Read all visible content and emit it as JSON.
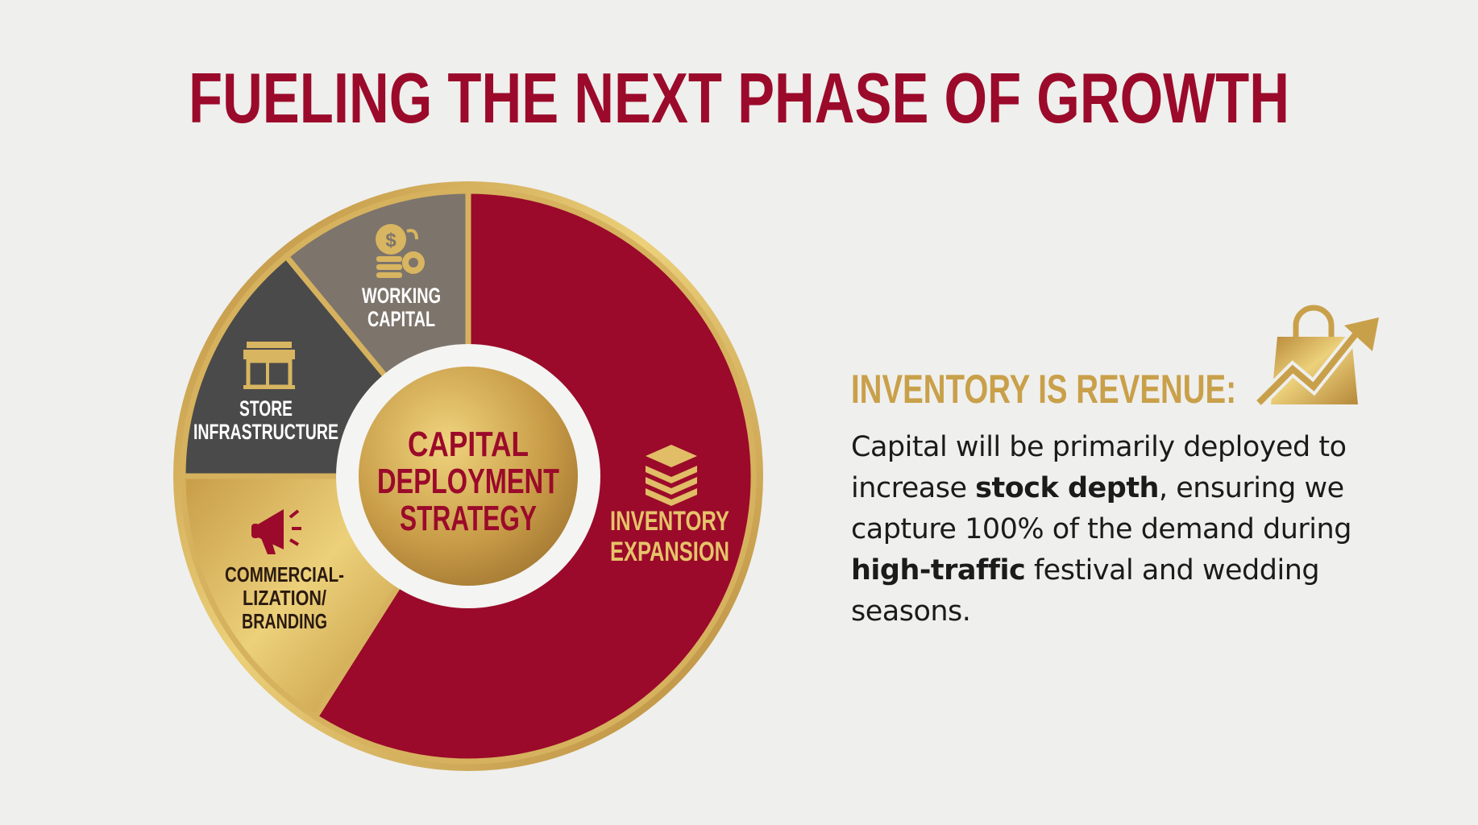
{
  "title": "FUELING THE NEXT PHASE OF GROWTH",
  "center_label": [
    "CAPITAL",
    "DEPLOYMENT",
    "STRATEGY"
  ],
  "segments": [
    {
      "id": "inventory-expansion",
      "label": [
        "INVENTORY",
        "EXPANSION"
      ],
      "icon": "stacked-layers-icon",
      "share": 0.59,
      "color": "#9b0a2a",
      "text_color": "#e6c36a"
    },
    {
      "id": "commercialization-branding",
      "label": [
        "COMMERCIAL-",
        "LIZATION/",
        "BRANDING"
      ],
      "icon": "megaphone-icon",
      "share": 0.16,
      "color": "#d4b060",
      "text_color": "#2a1a10"
    },
    {
      "id": "store-infrastructure",
      "label": [
        "STORE",
        "INFRASTRUCTURE"
      ],
      "icon": "storefront-icon",
      "share": 0.14,
      "color": "#4a4a4a",
      "text_color": "#ffffff"
    },
    {
      "id": "working-capital",
      "label": [
        "WORKING",
        "CAPITAL"
      ],
      "icon": "coins-gear-icon",
      "share": 0.11,
      "color": "#7d746c",
      "text_color": "#ffffff"
    }
  ],
  "callout": {
    "heading": "INVENTORY IS REVENUE:",
    "icon": "shopping-bag-growth-icon",
    "text_1": "Capital will be primarily deployed to increase ",
    "bold_1": "stock depth",
    "text_2": ", ensuring we capture 100% of the demand during ",
    "bold_2": "high-traffic",
    "text_3": " festival and wedding seasons."
  },
  "colors": {
    "red": "#9b0a2a",
    "gold": "#c9a04a",
    "gold_light": "#ecd07a",
    "background": "#efefed"
  }
}
